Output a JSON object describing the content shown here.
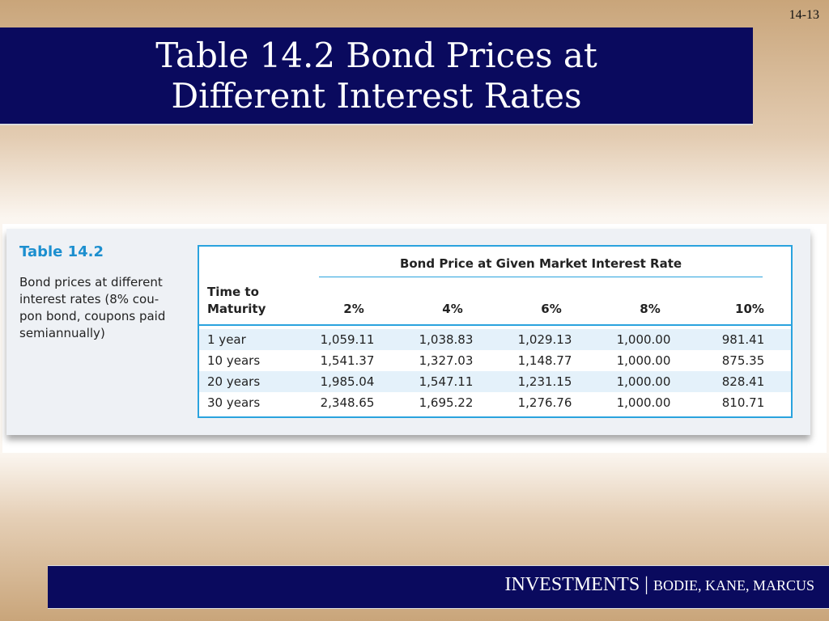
{
  "page_number": "14-13",
  "title": {
    "line1": "Table 14.2 Bond Prices at",
    "line2": "Different Interest Rates"
  },
  "table": {
    "caption_title": "Table 14.2",
    "caption_text": "Bond prices at different\ninterest rates (8% cou-\npon bond, coupons paid\nsemiannually)",
    "group_header": "Bond Price at Given Market Interest Rate",
    "row_header": "Time to\nMaturity",
    "columns": [
      "2%",
      "4%",
      "6%",
      "8%",
      "10%"
    ],
    "rows": [
      {
        "maturity": "1 year",
        "values": [
          "1,059.11",
          "1,038.83",
          "1,029.13",
          "1,000.00",
          "981.41"
        ]
      },
      {
        "maturity": "10 years",
        "values": [
          "1,541.37",
          "1,327.03",
          "1,148.77",
          "1,000.00",
          "875.35"
        ]
      },
      {
        "maturity": "20 years",
        "values": [
          "1,985.04",
          "1,547.11",
          "1,231.15",
          "1,000.00",
          "828.41"
        ]
      },
      {
        "maturity": "30 years",
        "values": [
          "2,348.65",
          "1,695.22",
          "1,276.76",
          "1,000.00",
          "810.71"
        ]
      }
    ]
  },
  "footer": {
    "main": "INVESTMENTS",
    "separator": " | ",
    "authors": "BODIE, KANE, MARCUS"
  },
  "colors": {
    "navy_bar": "#0a0a5e",
    "table_accent": "#2aa3de",
    "row_shade": "#e4f1fa"
  }
}
